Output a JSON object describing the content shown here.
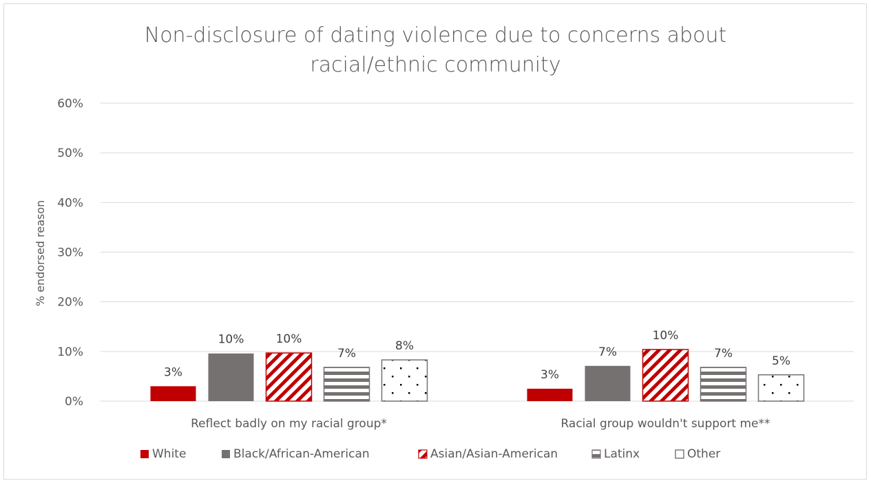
{
  "chart_data": {
    "type": "bar",
    "title": [
      "Non-disclosure of dating violence due to concerns about",
      "racial/ethnic community"
    ],
    "ylabel": "% endorsed reason",
    "xlabel": "",
    "ylim": [
      0,
      60
    ],
    "yticks": [
      0,
      10,
      20,
      30,
      40,
      50,
      60
    ],
    "ytick_labels": [
      "0%",
      "10%",
      "20%",
      "30%",
      "40%",
      "50%",
      "60%"
    ],
    "grid": true,
    "legend_position": "bottom",
    "categories": [
      "Reflect badly on my racial group*",
      "Racial group wouldn't support me**"
    ],
    "series": [
      {
        "name": "White",
        "values": [
          3.0,
          2.5
        ],
        "labels": [
          "3%",
          "3%"
        ],
        "pattern": "solid",
        "color": "#c00000"
      },
      {
        "name": "Black/African-American",
        "values": [
          9.6,
          7.1
        ],
        "labels": [
          "10%",
          "7%"
        ],
        "pattern": "solid",
        "color": "#767171"
      },
      {
        "name": "Asian/Asian-American",
        "values": [
          9.7,
          10.4
        ],
        "labels": [
          "10%",
          "10%"
        ],
        "pattern": "diagonal",
        "color": "#c00000"
      },
      {
        "name": "Latinx",
        "values": [
          6.8,
          6.8
        ],
        "labels": [
          "7%",
          "7%"
        ],
        "pattern": "horizontal",
        "color": "#767171"
      },
      {
        "name": "Other",
        "values": [
          8.3,
          5.3
        ],
        "labels": [
          "8%",
          "5%"
        ],
        "pattern": "dots",
        "color": "#767171"
      }
    ]
  }
}
